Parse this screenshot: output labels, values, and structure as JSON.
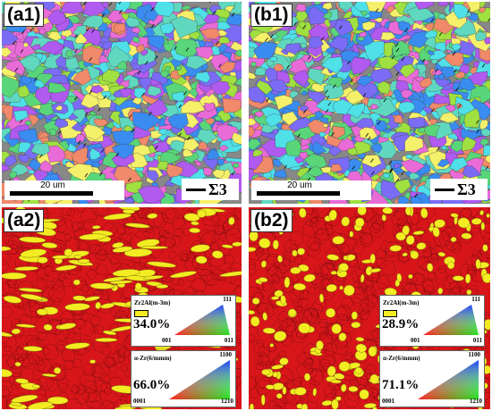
{
  "panels": {
    "a1": {
      "label": "(a1)",
      "scale_text": "20 um",
      "sigma_label": "Σ3"
    },
    "b1": {
      "label": "(b1)",
      "scale_text": "20 um",
      "sigma_label": "Σ3"
    },
    "a2": {
      "label": "(a2)",
      "legend_top": {
        "phase": "Zr2Al(m-3m)",
        "percent": "34.0%",
        "corner1": "001",
        "corner2": "011",
        "corner3": "111"
      },
      "legend_bottom": {
        "phase": "α-Zr(6/mmm)",
        "percent": "66.0%",
        "corner1": "0001",
        "corner2": "1210",
        "corner3": "1100"
      }
    },
    "b2": {
      "label": "(b2)",
      "legend_top": {
        "phase": "Zr2Al(m-3m)",
        "percent": "28.9%",
        "corner1": "001",
        "corner2": "011",
        "corner3": "111"
      },
      "legend_bottom": {
        "phase": "α-Zr(6/mmm)",
        "percent": "71.1%",
        "corner1": "0001",
        "corner2": "1210",
        "corner3": "1100"
      }
    }
  },
  "colors": {
    "matrix_red": "#d8161a",
    "phase_yellow": "#f3ec22",
    "grain_palette": [
      "#4fe0e8",
      "#7b6cf5",
      "#e86bd8",
      "#5ad67a",
      "#f08a6a",
      "#a0e040",
      "#3a8cf0",
      "#f5f06a",
      "#b05af0",
      "#60d8c0"
    ]
  }
}
